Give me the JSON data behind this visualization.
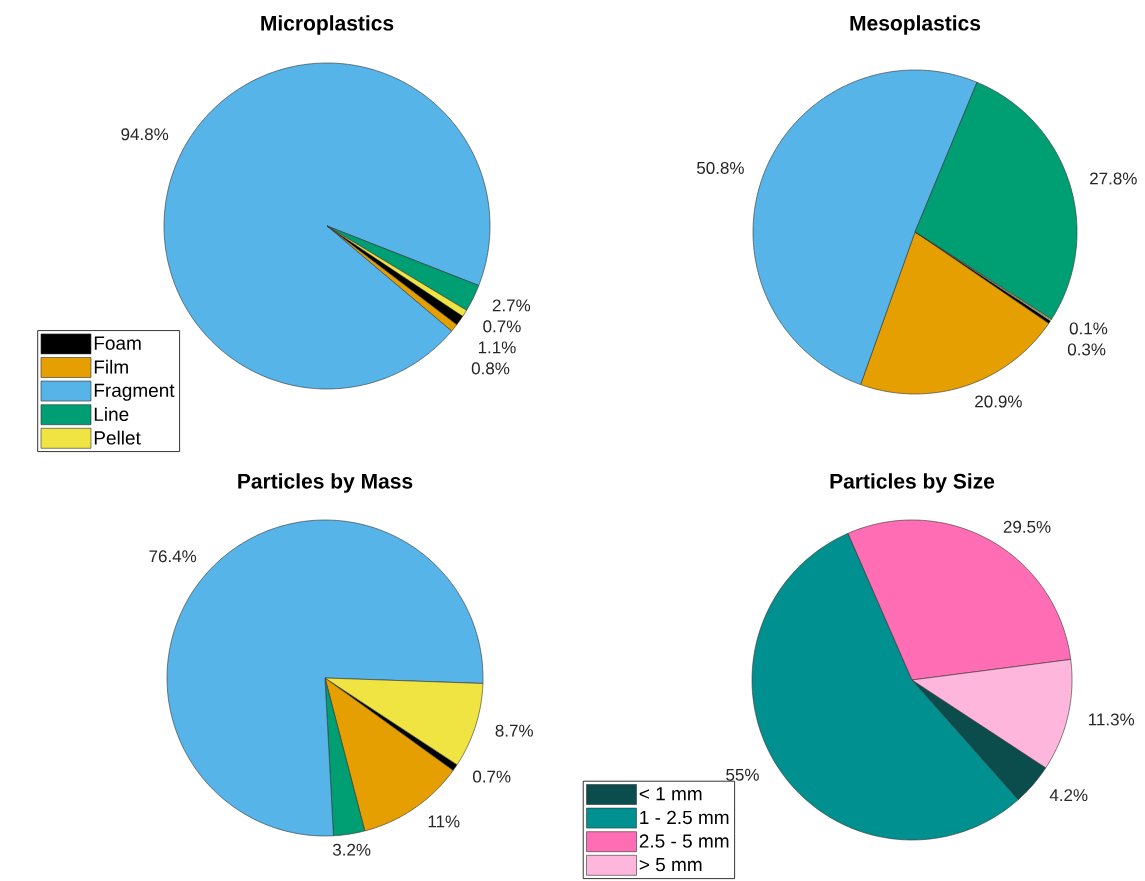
{
  "chart_data": [
    {
      "type": "pie",
      "title": "Microplastics",
      "categories": [
        "Foam",
        "Film",
        "Fragment",
        "Line",
        "Pellet"
      ],
      "values": [
        1.1,
        0.8,
        94.8,
        2.7,
        0.7
      ],
      "colors": [
        "#000000",
        "#e69f00",
        "#56b4e9",
        "#009e73",
        "#f0e442"
      ],
      "value_labels": [
        "1.1%",
        "0.8%",
        "94.8%",
        "2.7%",
        "0.7%"
      ],
      "legend": "bottom left"
    },
    {
      "type": "pie",
      "title": "Mesoplastics",
      "categories": [
        null,
        null,
        null,
        null,
        null
      ],
      "values": [
        0.3,
        20.9,
        50.8,
        27.8,
        0.1
      ],
      "colors": [
        "#000000",
        "#e69f00",
        "#56b4e9",
        "#009e73",
        "#f0e442"
      ],
      "value_labels": [
        "0.3%",
        "20.9%",
        "50.8%",
        "27.8%",
        "0.1%"
      ]
    },
    {
      "type": "pie",
      "title": "Particles by Mass",
      "categories": [
        null,
        null,
        null,
        null,
        null
      ],
      "values": [
        0.7,
        11,
        3.2,
        76.4,
        8.7
      ],
      "colors": [
        "#000000",
        "#e69f00",
        "#009e73",
        "#56b4e9",
        "#f0e442"
      ],
      "value_labels": [
        "0.7%",
        "11%",
        "3.2%",
        "76.4%",
        "8.7%"
      ]
    },
    {
      "type": "pie",
      "title": "Particles by Size",
      "categories": [
        "< 1 mm",
        "1 - 2.5 mm",
        "2.5 - 5 mm",
        "> 5 mm"
      ],
      "values": [
        4.2,
        55,
        29.5,
        11.3
      ],
      "colors": [
        "#0b4d4d",
        "#009090",
        "#ff6eb4",
        "#ffb6dc"
      ],
      "value_labels": [
        "4.2%",
        "55%",
        "29.5%",
        "11.3%"
      ],
      "legend": "bottom left"
    }
  ]
}
